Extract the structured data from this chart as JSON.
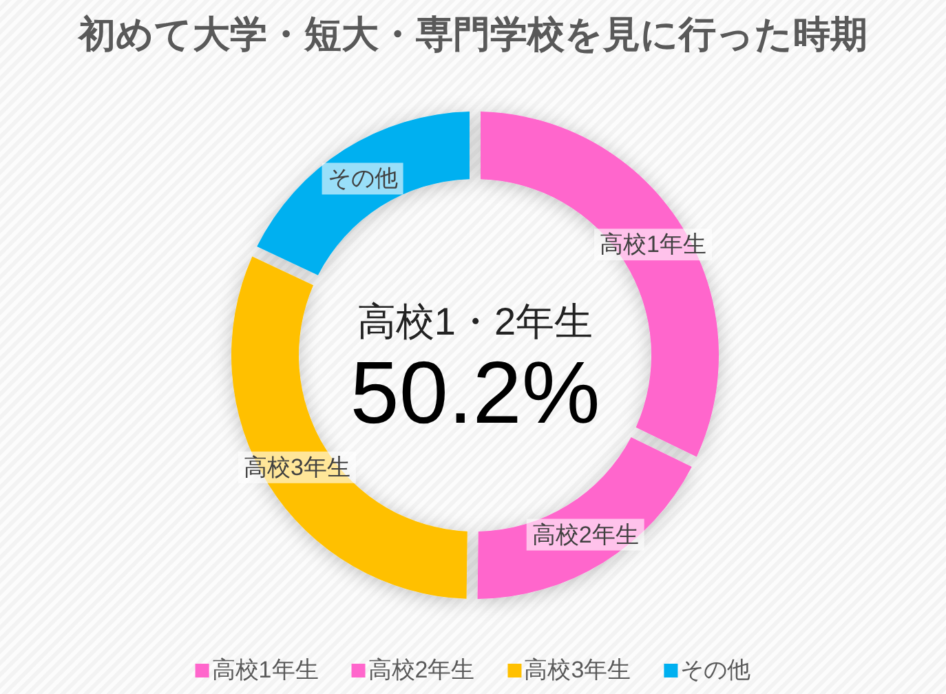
{
  "chart_data": {
    "type": "donut",
    "title": "初めて大学・短大・専門学校を見に行った時期",
    "categories": [
      "高校1年生",
      "高校2年生",
      "高校3年生",
      "その他"
    ],
    "values": [
      32.2,
      18.0,
      31.8,
      18.0
    ],
    "colors": [
      "#ff66cc",
      "#ff66cc",
      "#ffc000",
      "#00b0f0"
    ],
    "annotations": [
      "高校1・2年生",
      "50.2%"
    ],
    "legend": "bottom"
  }
}
